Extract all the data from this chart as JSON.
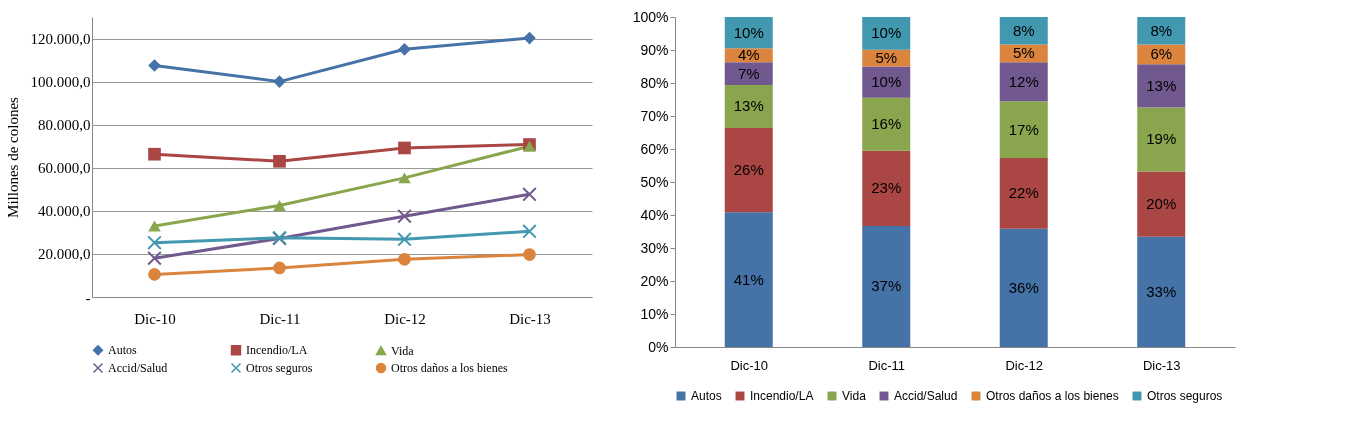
{
  "chart_data": [
    {
      "type": "line",
      "categories": [
        "Dic-10",
        "Dic-11",
        "Dic-12",
        "Dic-13"
      ],
      "ylabel": "Millones de colones",
      "ylim": [
        0,
        130000
      ],
      "yticks": [
        {
          "value": 0,
          "label": "-"
        },
        {
          "value": 20000,
          "label": "20.000,0"
        },
        {
          "value": 40000,
          "label": "40.000,0"
        },
        {
          "value": 60000,
          "label": "60.000,0"
        },
        {
          "value": 80000,
          "label": "80.000,0"
        },
        {
          "value": 100000,
          "label": "100.000,0"
        },
        {
          "value": 120000,
          "label": "120.000,0"
        }
      ],
      "grid": "y",
      "legend": "bottom",
      "series": [
        {
          "name": "Autos",
          "color": "#4572a7",
          "marker": "diamond",
          "values": [
            107500,
            100000,
            115000,
            120200
          ]
        },
        {
          "name": "Incendio/LA",
          "color": "#aa4643",
          "marker": "square",
          "values": [
            66300,
            63000,
            69200,
            70800
          ]
        },
        {
          "name": "Vida",
          "color": "#89a54e",
          "marker": "triangle",
          "values": [
            33000,
            42500,
            55300,
            70000
          ]
        },
        {
          "name": "Accid/Salud",
          "color": "#71588f",
          "marker": "cross",
          "values": [
            18000,
            27200,
            37500,
            47700
          ]
        },
        {
          "name": "Otros seguros",
          "color": "#4198af",
          "marker": "cross",
          "values": [
            25200,
            27500,
            26800,
            30500
          ]
        },
        {
          "name": "Otros daños a los bienes",
          "color": "#db843d",
          "marker": "circle",
          "values": [
            10500,
            13500,
            17500,
            19700
          ]
        }
      ]
    },
    {
      "type": "bar",
      "stacked": true,
      "categories": [
        "Dic-10",
        "Dic-11",
        "Dic-12",
        "Dic-13"
      ],
      "ylim": [
        0,
        100
      ],
      "yticks": [
        {
          "value": 0,
          "label": "0%"
        },
        {
          "value": 10,
          "label": "10%"
        },
        {
          "value": 20,
          "label": "20%"
        },
        {
          "value": 30,
          "label": "30%"
        },
        {
          "value": 40,
          "label": "40%"
        },
        {
          "value": 50,
          "label": "50%"
        },
        {
          "value": 60,
          "label": "60%"
        },
        {
          "value": 70,
          "label": "70%"
        },
        {
          "value": 80,
          "label": "80%"
        },
        {
          "value": 90,
          "label": "90%"
        },
        {
          "value": 100,
          "label": "100%"
        }
      ],
      "legend": "bottom",
      "series": [
        {
          "name": "Autos",
          "color": "#4572a7",
          "values": [
            40.8,
            36.7,
            35.8,
            33.4
          ],
          "value_labels": [
            "41%",
            "37%",
            "36%",
            "33%"
          ]
        },
        {
          "name": "Incendio/LA",
          "color": "#aa4643",
          "values": [
            25.6,
            22.8,
            21.5,
            19.8
          ],
          "value_labels": [
            "26%",
            "23%",
            "22%",
            "20%"
          ]
        },
        {
          "name": "Vida",
          "color": "#89a54e",
          "values": [
            13.0,
            16.0,
            17.2,
            19.4
          ],
          "value_labels": [
            "13%",
            "16%",
            "17%",
            "19%"
          ]
        },
        {
          "name": "Accid/Salud",
          "color": "#71588f",
          "values": [
            6.9,
            9.5,
            11.8,
            13.1
          ],
          "value_labels": [
            "7%",
            "10%",
            "12%",
            "13%"
          ]
        },
        {
          "name": "Otros daños a los bienes",
          "color": "#db843d",
          "values": [
            4.2,
            5.1,
            5.4,
            6.0
          ],
          "value_labels": [
            "4%",
            "5%",
            "5%",
            "6%"
          ]
        },
        {
          "name": "Otros seguros",
          "color": "#4198af",
          "values": [
            9.5,
            9.9,
            8.3,
            8.3
          ],
          "value_labels": [
            "10%",
            "10%",
            "8%",
            "8%"
          ]
        }
      ]
    }
  ]
}
